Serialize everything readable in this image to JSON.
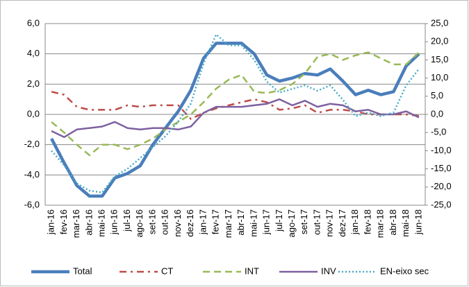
{
  "chart_data": {
    "type": "line",
    "categories": [
      "jan-16",
      "fev-16",
      "mar-16",
      "abr-16",
      "mai-16",
      "jun-16",
      "jul-16",
      "ago-16",
      "set-16",
      "out-16",
      "nov-16",
      "dez-16",
      "jan-17",
      "fev-17",
      "mar-17",
      "abr-17",
      "mai-17",
      "jun-17",
      "jul-17",
      "ago-17",
      "set-17",
      "out-17",
      "nov-17",
      "dez-17",
      "jan-18",
      "fev-18",
      "mar-18",
      "abr-18",
      "mai-18",
      "jun-18"
    ],
    "series": [
      {
        "name": "Total",
        "color": "#4a7ebb",
        "style": "solid",
        "values": [
          -1.6,
          -3.2,
          -4.7,
          -5.4,
          -5.4,
          -4.2,
          -3.9,
          -3.4,
          -2.0,
          -0.9,
          0.2,
          1.6,
          3.7,
          4.7,
          4.7,
          4.7,
          4.0,
          2.6,
          2.2,
          2.4,
          2.7,
          2.6,
          3.0,
          2.2,
          1.3,
          1.6,
          1.3,
          1.5,
          3.2,
          4.0
        ]
      },
      {
        "name": "CT",
        "color": "#be4b48",
        "style": "dashdot",
        "values": [
          1.5,
          1.3,
          0.5,
          0.3,
          0.3,
          0.3,
          0.6,
          0.5,
          0.6,
          0.6,
          0.6,
          -0.3,
          0.1,
          0.4,
          0.6,
          0.8,
          1.0,
          0.8,
          0.3,
          0.4,
          0.6,
          0.1,
          0.3,
          0.3,
          0.2,
          0.0,
          0.0,
          0.0,
          0.0,
          -0.1
        ]
      },
      {
        "name": "INT",
        "color": "#98b954",
        "style": "dashed",
        "values": [
          -0.5,
          -1.2,
          -2.0,
          -2.7,
          -2.0,
          -2.0,
          -2.3,
          -2.0,
          -1.6,
          -1.0,
          -0.5,
          0.0,
          0.8,
          1.7,
          2.3,
          2.6,
          1.5,
          1.4,
          1.6,
          2.0,
          2.7,
          3.8,
          4.0,
          3.6,
          3.9,
          4.1,
          3.7,
          3.3,
          3.3,
          4.1
        ]
      },
      {
        "name": "INV",
        "color": "#7d60a0",
        "style": "solid-thin",
        "values": [
          -1.1,
          -1.5,
          -1.0,
          -0.9,
          -0.8,
          -0.5,
          -0.9,
          -1.0,
          -0.9,
          -0.9,
          -1.0,
          -0.8,
          0.1,
          0.5,
          0.5,
          0.5,
          0.6,
          0.7,
          1.0,
          0.6,
          0.9,
          0.5,
          0.7,
          0.6,
          0.2,
          0.3,
          0.0,
          0.0,
          0.2,
          -0.2
        ]
      },
      {
        "name": "EN-eixo sec",
        "color": "#46aac5",
        "style": "dotted",
        "axis": "y2",
        "values": [
          -10,
          -14,
          -19,
          -21,
          -21.5,
          -17,
          -15,
          -12,
          -9,
          -6,
          -2,
          3,
          14,
          22,
          19,
          19,
          15,
          9,
          6,
          7,
          8,
          6.5,
          8,
          4,
          -0.5,
          0.5,
          -0.5,
          0.5,
          8,
          12.5
        ]
      }
    ],
    "ylim": [
      -6,
      6
    ],
    "yticks": [
      {
        "value": -6,
        "label": "-6,0"
      },
      {
        "value": -4,
        "label": "-4,0"
      },
      {
        "value": -2,
        "label": "-2,0"
      },
      {
        "value": 0,
        "label": "0,0"
      },
      {
        "value": 2,
        "label": "2,0"
      },
      {
        "value": 4,
        "label": "4,0"
      },
      {
        "value": 6,
        "label": "6,0"
      }
    ],
    "y2lim": [
      -25,
      25
    ],
    "y2ticks": [
      {
        "value": -25,
        "label": "-25,0"
      },
      {
        "value": -20,
        "label": "-20,0"
      },
      {
        "value": -15,
        "label": "-15,0"
      },
      {
        "value": -10,
        "label": "-10,0"
      },
      {
        "value": -5,
        "label": "-5,0"
      },
      {
        "value": 0,
        "label": "0,0"
      },
      {
        "value": 5,
        "label": "5,0"
      },
      {
        "value": 10,
        "label": "10,0"
      },
      {
        "value": 15,
        "label": "15,0"
      },
      {
        "value": 20,
        "label": "20,0"
      },
      {
        "value": 25,
        "label": "25,0"
      }
    ],
    "grid": true,
    "legend": "bottom"
  }
}
